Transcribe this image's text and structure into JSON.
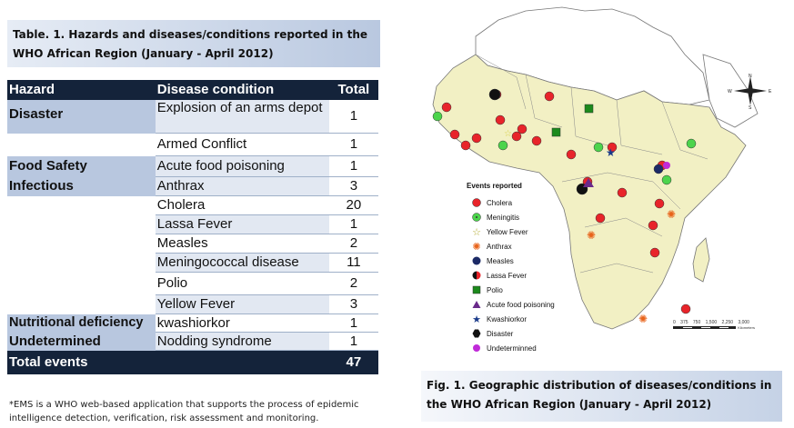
{
  "table": {
    "title_line1": "Table. 1. Hazards and diseases/conditions  reported in the",
    "title_line2": "WHO African Region (January - April  2012)",
    "headers": {
      "hazard": "Hazard",
      "disease": "Disease condition",
      "total": "Total"
    },
    "rows": [
      {
        "hazard": "Disaster",
        "disease": "Explosion of an arms depot",
        "total": "1"
      },
      {
        "hazard": "",
        "disease": "Armed Conflict",
        "total": "1"
      },
      {
        "hazard": "Food Safety",
        "disease": "Acute food poisoning",
        "total": "1"
      },
      {
        "hazard": "Infectious",
        "disease": "Anthrax",
        "total": "3"
      },
      {
        "hazard": "",
        "disease": "Cholera",
        "total": "20"
      },
      {
        "hazard": "",
        "disease": "Lassa Fever",
        "total": "1"
      },
      {
        "hazard": "",
        "disease": "Measles",
        "total": "2"
      },
      {
        "hazard": "",
        "disease": "Meningococcal disease",
        "total": "11"
      },
      {
        "hazard": "",
        "disease": "Polio",
        "total": "2"
      },
      {
        "hazard": "",
        "disease": "Yellow Fever",
        "total": "3"
      },
      {
        "hazard": "Nutritional deficiency",
        "disease": "kwashiorkor",
        "total": "1"
      },
      {
        "hazard": "Undetermined",
        "disease": "Nodding syndrome",
        "total": "1"
      }
    ],
    "footer": {
      "label": "Total events",
      "total": "47"
    }
  },
  "footnote": "*EMS is a WHO web-based application that supports the process of epidemic intelligence detection, verification, risk assessment and monitoring.",
  "map": {
    "legend_title": "Events reported",
    "legend": [
      {
        "label": "Cholera",
        "icon": "red-circle-icon",
        "color": "#e8242a"
      },
      {
        "label": "Meningitis",
        "icon": "green-dot-circle-icon",
        "color": "#4cd44c"
      },
      {
        "label": "Yellow Fever",
        "icon": "star-outline-icon",
        "color": "#d8d04a"
      },
      {
        "label": "Anthrax",
        "icon": "orange-burst-icon",
        "color": "#e8631a"
      },
      {
        "label": "Measles",
        "icon": "navy-circle-icon",
        "color": "#1c2a66"
      },
      {
        "label": "Lassa Fever",
        "icon": "red-black-circle-icon",
        "color": "#e8242a"
      },
      {
        "label": "Polio",
        "icon": "green-square-icon",
        "color": "#1c8a1c"
      },
      {
        "label": "Acute food poisoning",
        "icon": "purple-triangle-icon",
        "color": "#6a2a8a"
      },
      {
        "label": "Kwashiorkor",
        "icon": "blue-star-icon",
        "color": "#1a3a8a"
      },
      {
        "label": "Disaster",
        "icon": "black-hexagon-icon",
        "color": "#111111"
      },
      {
        "label": "Undeterminned",
        "icon": "purple-circle-icon",
        "color": "#c02ad8"
      }
    ],
    "scale_labels": [
      "0",
      "375",
      "750",
      "1,500",
      "2,250",
      "3,000"
    ],
    "scale_unit": "Kilometers",
    "compass": {
      "n": "N",
      "s": "S",
      "e": "E",
      "w": "W"
    },
    "land_color": "#f2f0c4",
    "other_land_color": "#ffffff",
    "border_color": "#777777"
  },
  "caption": {
    "line1": "Fig. 1. Geographic distribution of diseases/conditions in",
    "line2": "the WHO African Region (January  - April 2012)"
  }
}
